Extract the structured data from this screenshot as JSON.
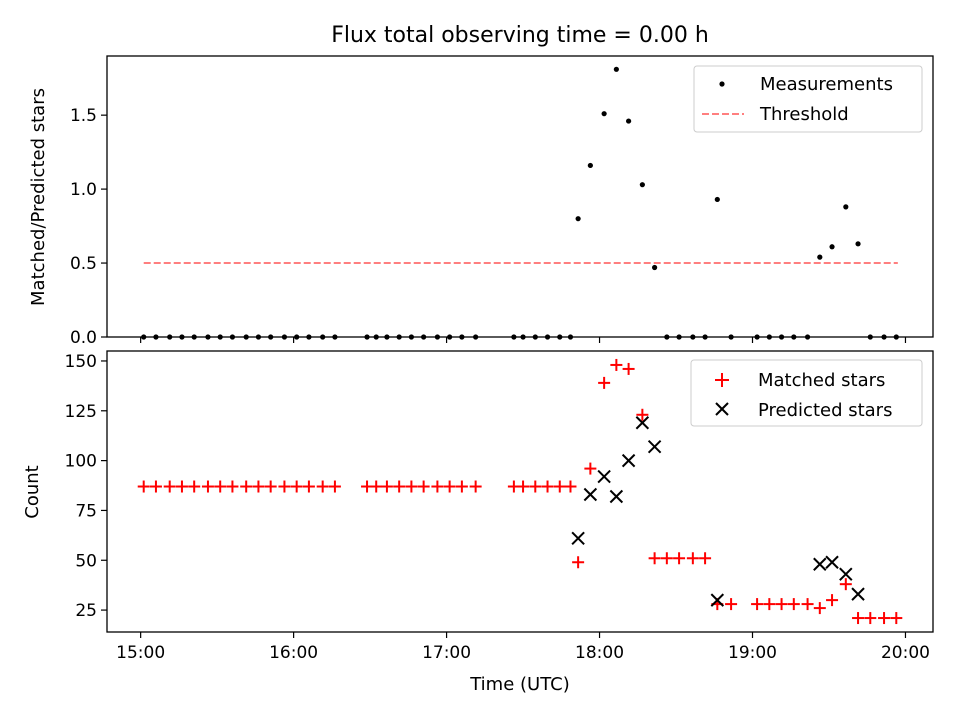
{
  "chart_data": [
    {
      "type": "scatter",
      "title": "Flux total observing time = 0.00 h",
      "xlabel": "",
      "ylabel": "Matched/Predicted stars",
      "xlim": [
        14.78,
        20.18
      ],
      "ylim": [
        0.0,
        1.9
      ],
      "yticks": [
        0.0,
        0.5,
        1.0,
        1.5
      ],
      "ytick_labels": [
        "0.0",
        "0.5",
        "1.0",
        "1.5"
      ],
      "legend": {
        "position": "top-right",
        "entries": [
          "Measurements",
          "Threshold"
        ]
      },
      "threshold": {
        "name": "Threshold",
        "value": 0.5,
        "x_range": [
          15.02,
          19.95
        ],
        "color": "#ff7f7f"
      },
      "series": [
        {
          "name": "Measurements",
          "color": "#000000",
          "x": [
            15.02,
            15.1,
            15.19,
            15.27,
            15.35,
            15.44,
            15.52,
            15.6,
            15.69,
            15.77,
            15.85,
            15.94,
            16.02,
            16.1,
            16.19,
            16.27,
            16.48,
            16.54,
            16.61,
            16.69,
            16.77,
            16.85,
            16.94,
            17.02,
            17.1,
            17.19,
            17.44,
            17.5,
            17.58,
            17.66,
            17.74,
            17.81,
            17.86,
            17.94,
            18.03,
            18.11,
            18.19,
            18.28,
            18.36,
            18.44,
            18.52,
            18.61,
            18.69,
            18.77,
            18.86,
            19.03,
            19.11,
            19.19,
            19.27,
            19.36,
            19.44,
            19.52,
            19.61,
            19.69,
            19.77,
            19.86,
            19.94
          ],
          "y": [
            0,
            0,
            0,
            0,
            0,
            0,
            0,
            0,
            0,
            0,
            0,
            0,
            0,
            0,
            0,
            0,
            0,
            0,
            0,
            0,
            0,
            0,
            0,
            0,
            0,
            0,
            0,
            0,
            0,
            0,
            0,
            0,
            0.8,
            1.16,
            1.51,
            1.81,
            1.46,
            1.03,
            0.47,
            0,
            0,
            0,
            0,
            0.93,
            0,
            0,
            0,
            0,
            0,
            0,
            0.54,
            0.61,
            0.88,
            0.63,
            0,
            0,
            0
          ]
        }
      ]
    },
    {
      "type": "scatter",
      "title": "",
      "xlabel": "Time (UTC)",
      "ylabel": "Count",
      "xlim": [
        14.78,
        20.18
      ],
      "ylim": [
        14,
        155
      ],
      "yticks": [
        25,
        50,
        75,
        100,
        125,
        150
      ],
      "ytick_labels": [
        "25",
        "50",
        "75",
        "100",
        "125",
        "150"
      ],
      "xticks": [
        15,
        16,
        17,
        18,
        19,
        20
      ],
      "xtick_labels": [
        "15:00",
        "16:00",
        "17:00",
        "18:00",
        "19:00",
        "20:00"
      ],
      "legend": {
        "position": "top-right",
        "entries": [
          "Matched stars",
          "Predicted stars"
        ]
      },
      "series": [
        {
          "name": "Matched stars",
          "marker": "+",
          "color": "#ff0000",
          "x": [
            15.02,
            15.1,
            15.19,
            15.27,
            15.35,
            15.44,
            15.52,
            15.6,
            15.69,
            15.77,
            15.85,
            15.94,
            16.02,
            16.1,
            16.19,
            16.27,
            16.48,
            16.54,
            16.61,
            16.69,
            16.77,
            16.85,
            16.94,
            17.02,
            17.1,
            17.19,
            17.44,
            17.5,
            17.58,
            17.66,
            17.74,
            17.81,
            17.86,
            17.94,
            18.03,
            18.11,
            18.19,
            18.28,
            18.36,
            18.44,
            18.52,
            18.61,
            18.69,
            18.77,
            18.86,
            19.03,
            19.11,
            19.19,
            19.27,
            19.36,
            19.44,
            19.52,
            19.61,
            19.69,
            19.77,
            19.86,
            19.94
          ],
          "y": [
            87,
            87,
            87,
            87,
            87,
            87,
            87,
            87,
            87,
            87,
            87,
            87,
            87,
            87,
            87,
            87,
            87,
            87,
            87,
            87,
            87,
            87,
            87,
            87,
            87,
            87,
            87,
            87,
            87,
            87,
            87,
            87,
            49,
            96,
            139,
            148,
            146,
            123,
            51,
            51,
            51,
            51,
            51,
            28,
            28,
            28,
            28,
            28,
            28,
            28,
            26,
            30,
            38,
            21,
            21,
            21,
            21
          ]
        },
        {
          "name": "Predicted stars",
          "marker": "x",
          "color": "#000000",
          "x": [
            17.86,
            17.94,
            18.03,
            18.11,
            18.19,
            18.28,
            18.36,
            18.77,
            19.44,
            19.52,
            19.61,
            19.69
          ],
          "y": [
            61,
            83,
            92,
            82,
            100,
            119,
            107,
            30,
            48,
            49,
            43,
            33
          ]
        }
      ]
    }
  ]
}
